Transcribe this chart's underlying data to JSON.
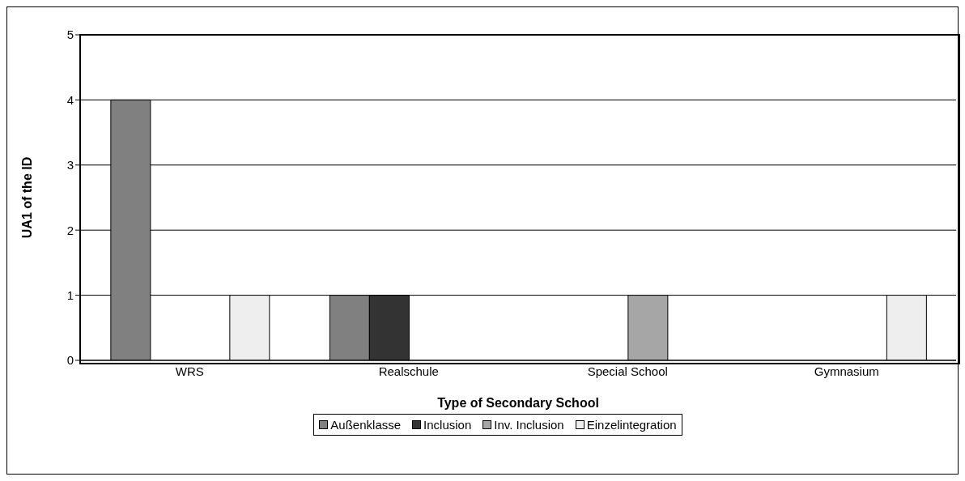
{
  "chart_data": {
    "type": "bar",
    "xlabel": "Type of Secondary School",
    "ylabel": "UA1 of the ID",
    "categories": [
      "WRS",
      "Realschule",
      "Special School",
      "Gymnasium"
    ],
    "series": [
      {
        "name": "Außenklasse",
        "color": "#808080",
        "values": [
          4,
          1,
          0,
          0
        ]
      },
      {
        "name": "Inclusion",
        "color": "#333333",
        "values": [
          0,
          1,
          0,
          0
        ]
      },
      {
        "name": "Inv. Inclusion",
        "color": "#a6a6a6",
        "values": [
          0,
          0,
          1,
          0
        ]
      },
      {
        "name": "Einzelintegration",
        "color": "#eeeeee",
        "values": [
          1,
          0,
          0,
          1
        ]
      }
    ],
    "ylim": [
      0,
      5
    ],
    "yticks": [
      0,
      1,
      2,
      3,
      4,
      5
    ],
    "grid": "y",
    "legend": "bottom"
  }
}
